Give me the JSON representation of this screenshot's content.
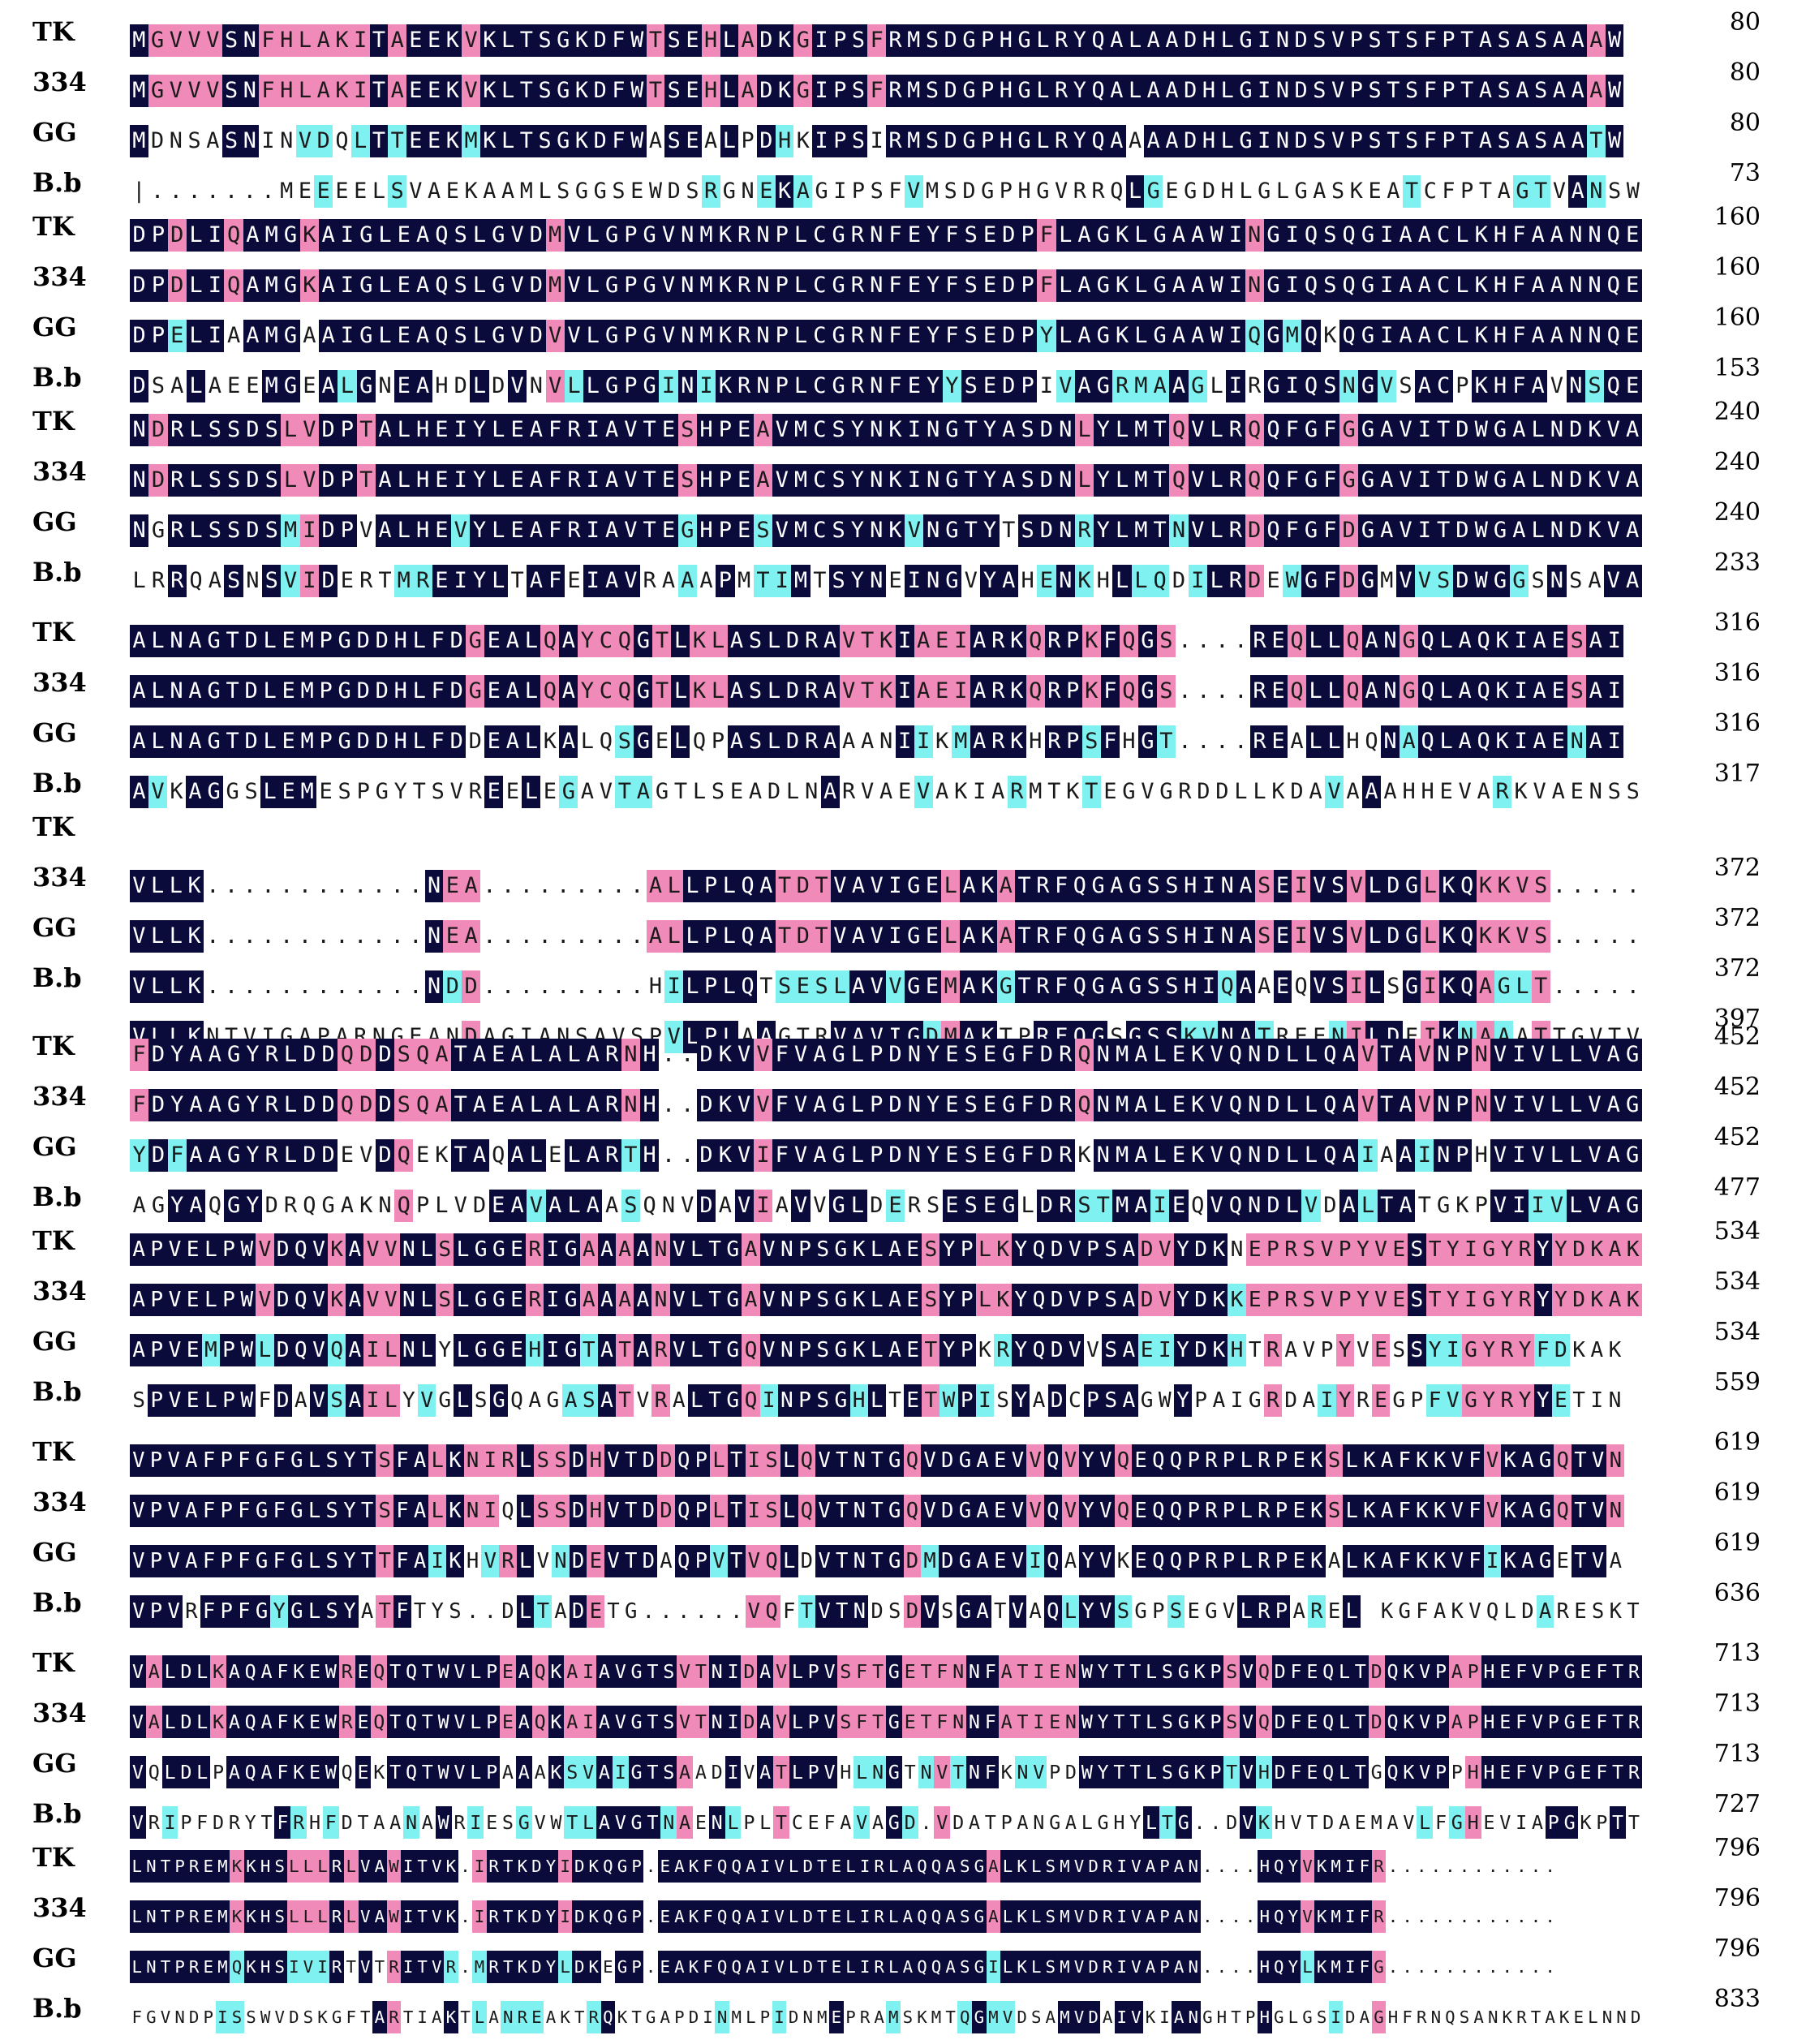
{
  "colors": {
    "identical": "#0b0b3b",
    "high_similarity": "#f08ab9",
    "low_similarity": "#7ef1f0",
    "none": "#ffffff"
  },
  "blocks": [
    {
      "rows": [
        {
          "label": "TK",
          "seq": "MGVVVSNFHLAKITAEEKVKLTSGKDFWTSEHLADKGIPSFRMSDGPHGLRYQALAADHLGINDSVPSTSFPTASASAAAW",
          "num": "80"
        },
        {
          "label": "334",
          "seq": "MGVVVSNFHLAKITAEEKVKLTSGKDFWTSEHLADKGIPSFRMSDGPHGLRYQALAADHLGINDSVPSTSFPTASASAAAW",
          "num": "80"
        },
        {
          "label": "GG",
          "seq": "MDNSASNINVDQLTTEEKMKLTSGKDFWASEALPDHKIPSIRMSDGPHGLRYQAAAADHLGINDSVPSTSFPTASASAATW",
          "num": "80"
        },
        {
          "label": "B.b",
          "seq": "|.......MEEEELSVAEKAAMLSGGSEWDSRGNEKAGIPSFVMSDGPHGVRRQLGEGDHLGLGASKEATCFPTAGTVANSW",
          "num": "73"
        }
      ]
    },
    {
      "rows": [
        {
          "label": "TK",
          "seq": "DPDLIQAMGKAIGLEAQSLGVDMVLGPGVNMKRNPLCGRNFEYFSEDPFLAGKLGAAWINGIQSQGIAACLKHFAANNQE",
          "num": "160"
        },
        {
          "label": "334",
          "seq": "DPDLIQAMGKAIGLEAQSLGVDMVLGPGVNMKRNPLCGRNFEYFSEDPFLAGKLGAAWINGIQSQGIAACLKHFAANNQE",
          "num": "160"
        },
        {
          "label": "GG",
          "seq": "DPELIAAMGAAIGLEAQSLGVDVVLGPGVNMKRNPLCGRNFEYFSEDPYLAGKLGAAWIQGMQKQGIAACLKHFAANNQE",
          "num": "160"
        },
        {
          "label": "B.b",
          "seq": "DSALAEEMGEALGNEAHDLDVNVLLGPGINIKRNPLCGRNFEYYSEDPIVAGRMAAGLIRGIQSNGVSACPKHFAVNSQE",
          "num": "153"
        }
      ]
    },
    {
      "rows": [
        {
          "label": "TK",
          "seq": "NDRLSSDSLVDPTALHEIYLEAFRIAVTESHPEAVMCSYNKINGTYASDNLYLMTQVLRQQFGFGGAVITDWGALNDKVA",
          "num": "240"
        },
        {
          "label": "334",
          "seq": "NDRLSSDSLVDPTALHEIYLEAFRIAVTESHPEAVMCSYNKINGTYASDNLYLMTQVLRQQFGFGGAVITDWGALNDKVA",
          "num": "240"
        },
        {
          "label": "GG",
          "seq": "NGRLSSDSMIDPVALHEVYLEAFRIAVTEGHPESVMCSYNKVNGTYTSDNRYLMTNVLRDQFGFDGAVITDWGALNDKVA",
          "num": "240"
        },
        {
          "label": "B.b",
          "seq": "LRRQASNSVIDERTMREIYLTAFEIAVRAAAPMTIMTSYNEINGVYAHENKHLLQDILRDEWGFDGMVVSDWGGSNSAVA",
          "num": "233"
        }
      ]
    },
    {
      "rows": [
        {
          "label": "TK",
          "seq": "ALNAGTDLEMPGDDHLFDGEALQAYCQGTLKLASLDRAVTKIAEIARKQRPKFQGS....REQLLQANGQLAQKIAESAI",
          "num": "316"
        },
        {
          "label": "334",
          "seq": "ALNAGTDLEMPGDDHLFDGEALQAYCQGTLKLASLDRAVTKIAEIARKQRPKFQGS....REQLLQANGQLAQKIAESAI",
          "num": "316"
        },
        {
          "label": "GG",
          "seq": "ALNAGTDLEMPGDDHLFDDEALKALQSGELQPASLDRAAANIIKMARKHRPSFHGT....REALLHQNAQLAQKIAENAI",
          "num": "316"
        },
        {
          "label": "B.b",
          "seq": "AVKAGGSLEMESPGYTSVREELEGAVTAGTLSEADLNARVAEVAKIARMTKTEGVGRDDLLKDAVAAAHHEVARKVAENSS",
          "num": "317"
        }
      ]
    },
    {
      "rows": [
        {
          "label": "TK",
          "seq": "",
          "num": ""
        },
        {
          "label": "334",
          "seq": "VLLK............NEA.........ALLPLQATDTVAVIGELAKATRFQGAGSSHINASEIVSVLDGLKQKKVS.....",
          "num": "372"
        },
        {
          "label": "GG",
          "seq": "VLLK............NEA.........ALLPLQATDTVAVIGELAKATRFQGAGSSHINASEIVSVLDGLKQKKVS.....",
          "num": "372"
        },
        {
          "label": "B.b",
          "seq": "VLLK............NDD.........HILPLQTSESLAVVGEMAKGTRFQGAGSSHIQAAEQVSILSGIKQAGLT.....",
          "num": "372"
        },
        {
          "label": "",
          "seq": "VLLKNTVIGAPARNGEANDAGIANSAVSPVLPLAAGTRVAVIGDMAKTPRFQGSGSSKVNATREENILDEIKNAAATTGVTV",
          "num": "397"
        }
      ]
    },
    {
      "rows": [
        {
          "label": "TK",
          "seq": "FDYAAGYRLDDQDDSQATAEALALARNH..DKVVFVAGLPDNYESEGFDRQNMALEKVQNDLLQAVTAVNPNVIVLLVAG",
          "num": "452"
        },
        {
          "label": "334",
          "seq": "FDYAAGYRLDDQDDSQATAEALALARNH..DKVVFVAGLPDNYESEGFDRQNMALEKVQNDLLQAVTAVNPNVIVLLVAG",
          "num": "452"
        },
        {
          "label": "GG",
          "seq": "YDFAAGYRLDDEVDQEKTAQALELARTH..DKVIFVAGLPDNYESEGFDRKNMALEKVQNDLLQAIAAINPHVIVLLVAG",
          "num": "452"
        },
        {
          "label": "B.b",
          "seq": "AGYAQGYDRQGAKNQPLVDEAVALAASQNVDAVIAVVGLDERSESEGLDRSTMAIEQVQNDLVDALTATGKPVIIVLVAG",
          "num": "477"
        }
      ]
    },
    {
      "rows": [
        {
          "label": "TK",
          "seq": "APVELPWVDQVKAVVNLSLGGERIGAAAANVLTGAVNPSGKLAESYPLKYQDVPSADVYDKNEPRSVPYVESTYIGYRYYDKAK",
          "num": "534"
        },
        {
          "label": "334",
          "seq": "APVELPWVDQVKAVVNLSLGGERIGAAAANVLTGAVNPSGKLAESYPLKYQDVPSADVYDKKEPRSVPYVESTYIGYRYYDKAK",
          "num": "534"
        },
        {
          "label": "GG",
          "seq": "APVEMPWLDQVQAILNLYLGGEHIGTATARVLTGQVNPSGKLAETYPKRYQDVVSAEIYDKHTRAVPYVESSYIGYRYFDKAK",
          "num": "534"
        },
        {
          "label": "B.b",
          "seq": "SPVELPWFDAVSAILYVGLSGQAGASATVRALTGQINPSGHLTETWPISYADCPSAGWYPAIGRDAIYREGPFVGYRYYETIN",
          "num": "559"
        }
      ]
    },
    {
      "rows": [
        {
          "label": "TK",
          "seq": "VPVAFPFGFGLSYTSFALKNIRLSSDHVTDDQPLTISLQVTNTGQVDGAEVVQVYVQEQQPRPLRPEKSLKAFKKVFVKAGQTVN",
          "num": "619"
        },
        {
          "label": "334",
          "seq": "VPVAFPFGFGLSYTSFALKNIQLSSDHVTDDQPLTISLQVTNTGQVDGAEVVQVYVQEQQPRPLRPEKSLKAFKKVFVKAGQTVN",
          "num": "619"
        },
        {
          "label": "GG",
          "seq": "VPVAFPFGFGLSYTTFAIKHVRLVNDEVTDAQPVTVQLDVTNTGDMDGAEVIQAYVKEQQPRPLRPEKALKAFKKVFIKAGETVA",
          "num": "619"
        },
        {
          "label": "B.b",
          "seq": "VPVRFPFGYGLSYATFTYS..DLTADETG......VQFTVTNDSDVSGATVAQLYVSGPSEGVLRPAREL KGFAKVQLDARESKT",
          "num": "636"
        }
      ]
    },
    {
      "rows": [
        {
          "label": "TK",
          "seq": "VALDLKAQAFKEWREQTQTWVLPEAQKAIAVGTSVTNIDAVLPVSFTGETFNNFATIENWYTTLSGKPSVQDFEQLTDQKVPAPHEFVPGEFTR",
          "num": "713"
        },
        {
          "label": "334",
          "seq": "VALDLKAQAFKEWREQTQTWVLPEAQKAIAVGTSVTNIDAVLPVSFTGETFNNFATIENWYTTLSGKPSVQDFEQLTDQKVPAPHEFVPGEFTR",
          "num": "713"
        },
        {
          "label": "GG",
          "seq": "VQLDLPAQAFKEWQEKTQTWVLPAAAKSVAIGTSAADIVATLPVHLNGTNVTNFKNVPDWYTTLSGKPTVHDFEQLTGQKVPPHHEFVPGEFTR",
          "num": "713"
        },
        {
          "label": "B.b",
          "seq": "VRIPFDRYTFRHFDTAANAWRIESGVWTLAVGTNAENLPLTCEFAVAGD.VDATPANGALGHYLTG..DVKHVTDAEMAVLFGHEVIAPGKPTT",
          "num": "727"
        }
      ]
    },
    {
      "rows": [
        {
          "label": "TK",
          "seq": "LNTPREMKKHSLLLRLVAWITVK.IRTKDYIDKQGP.EAKFQQAIVLDTELIRLAQQASGALKLSMVDRIVAPAN....HQYVKMIFR............",
          "num": "796"
        },
        {
          "label": "334",
          "seq": "LNTPREMKKHSLLLRLVAWITVK.IRTKDYIDKQGP.EAKFQQAIVLDTELIRLAQQASGALKLSMVDRIVAPAN....HQYVKMIFR............",
          "num": "796"
        },
        {
          "label": "GG",
          "seq": "LNTPREMQKHSIVIRTVTRITVR.MRTKDYLDKEGP.EAKFQQAIVLDTELIRLAQQASGILKLSMVDRIVAPAN....HQYLKMIFG............",
          "num": "796"
        },
        {
          "label": "B.b",
          "seq": "FGVNDPISSWVDSKGFTARTIAKTLANREAKTRQKTGAPDINMLPIDNMEPRAMSKMTQGMVDSAMVDAIVKIANGHTPHGLGSIDAGHFRNQSANKRTAKELNND",
          "num": "833"
        }
      ]
    }
  ]
}
